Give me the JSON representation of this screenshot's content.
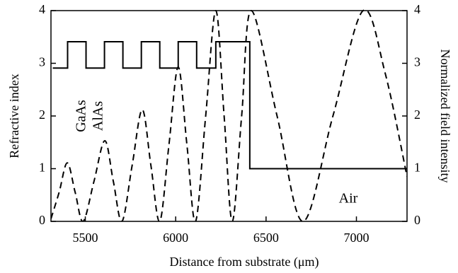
{
  "chart_data": {
    "type": "line",
    "xlabel": "Distance from substrate (μm)",
    "ylabel": "Refractive index",
    "y2label": "Normalized field intensity",
    "annotations": [
      "GaAs",
      "AlAs",
      "Air"
    ],
    "xlim": [
      5310,
      7280
    ],
    "xticks": [
      5500,
      6000,
      6500,
      7000
    ],
    "ylim": [
      0,
      4
    ],
    "yticks": [
      0,
      1,
      2,
      3,
      4
    ],
    "y2lim": [
      0,
      4
    ],
    "y2ticks": [
      0,
      1,
      2,
      3,
      4
    ],
    "series": [
      {
        "color": "#000000",
        "dashed": false,
        "x": [
          5320,
          5402,
          5402,
          5504,
          5504,
          5606,
          5606,
          5708,
          5708,
          5810,
          5810,
          5912,
          5912,
          6014,
          6014,
          6116,
          6116,
          6222,
          6222,
          6410,
          6410,
          7280
        ],
        "values": [
          2.91,
          2.91,
          3.41,
          3.41,
          2.91,
          2.91,
          3.41,
          3.41,
          2.91,
          2.91,
          3.41,
          3.41,
          2.91,
          2.91,
          3.41,
          3.41,
          2.91,
          2.91,
          3.41,
          3.41,
          1,
          1
        ]
      },
      {
        "color": "#000000",
        "dashed": true,
        "axis": "y2",
        "x": [
          5310,
          5355,
          5400,
          5444,
          5488,
          5548,
          5608,
          5655,
          5703,
          5759,
          5815,
          5863,
          5912,
          5963,
          6014,
          6062,
          6110,
          6166,
          6222,
          6268,
          6313,
          6365,
          6418,
          6561,
          6704,
          6870,
          7037,
          7160,
          7280
        ],
        "values": [
          0.05,
          0.55,
          1.11,
          0.55,
          0,
          0.76,
          1.53,
          0.76,
          0,
          1.06,
          2.12,
          1.06,
          0,
          1.46,
          2.93,
          1.46,
          0,
          2.0,
          4.0,
          2.0,
          0,
          2.0,
          4.0,
          2.0,
          0,
          2.0,
          4.0,
          2.8,
          0.85
        ]
      }
    ]
  }
}
